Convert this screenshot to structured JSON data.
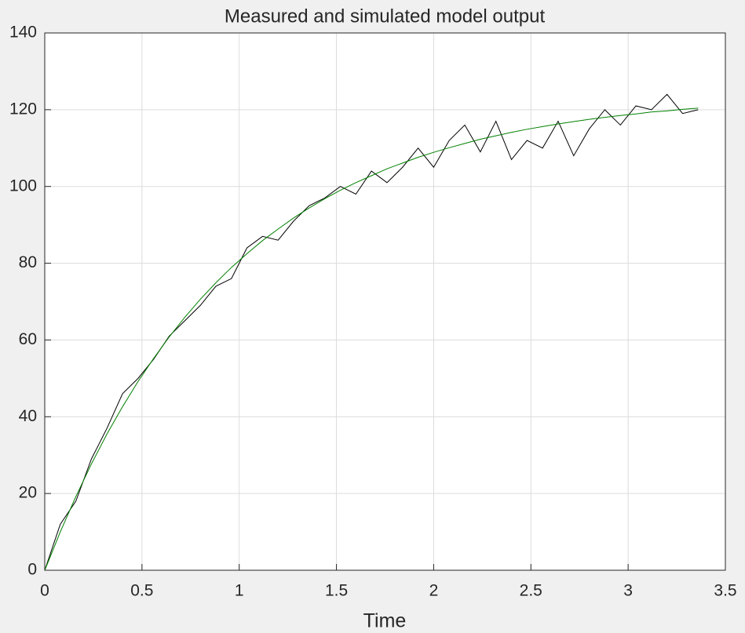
{
  "chart_data": {
    "type": "line",
    "title": "Measured and simulated model output",
    "xlabel": "Time",
    "x": [
      0,
      0.08,
      0.16,
      0.24,
      0.32,
      0.4,
      0.48,
      0.56,
      0.64,
      0.72,
      0.8,
      0.88,
      0.96,
      1.04,
      1.12,
      1.2,
      1.28,
      1.36,
      1.44,
      1.52,
      1.6,
      1.68,
      1.76,
      1.84,
      1.92,
      2.0,
      2.08,
      2.16,
      2.24,
      2.32,
      2.4,
      2.48,
      2.56,
      2.64,
      2.72,
      2.8,
      2.88,
      2.96,
      3.04,
      3.12,
      3.2,
      3.28,
      3.36
    ],
    "series": [
      {
        "color": "#000000",
        "values": [
          0,
          12,
          18,
          29,
          37,
          46,
          50,
          55,
          61,
          65,
          69,
          74,
          76,
          84,
          87,
          86,
          91,
          95,
          97,
          100,
          98,
          104,
          101,
          105,
          110,
          105,
          112,
          116,
          109,
          117,
          107,
          112,
          110,
          117,
          108,
          115,
          120,
          116,
          121,
          120,
          124,
          119,
          120
        ]
      },
      {
        "color": "#008000",
        "values": [
          0,
          10.0,
          19.2,
          27.7,
          35.5,
          42.6,
          49.2,
          55.2,
          60.8,
          65.9,
          70.6,
          74.9,
          78.9,
          82.5,
          85.9,
          88.9,
          91.8,
          94.4,
          96.8,
          99.0,
          101.0,
          102.8,
          104.6,
          106.1,
          107.6,
          108.9,
          110.1,
          111.2,
          112.3,
          113.2,
          114.1,
          114.9,
          115.6,
          116.3,
          116.9,
          117.5,
          118.0,
          118.5,
          118.9,
          119.4,
          119.7,
          120.1,
          120.4
        ]
      }
    ],
    "xlim": [
      0,
      3.5
    ],
    "xticks": [
      0,
      0.5,
      1,
      1.5,
      2,
      2.5,
      3,
      3.5
    ],
    "ylim": [
      0,
      140
    ],
    "yticks": [
      0,
      20,
      40,
      60,
      80,
      100,
      120,
      140
    ],
    "grid": true
  }
}
